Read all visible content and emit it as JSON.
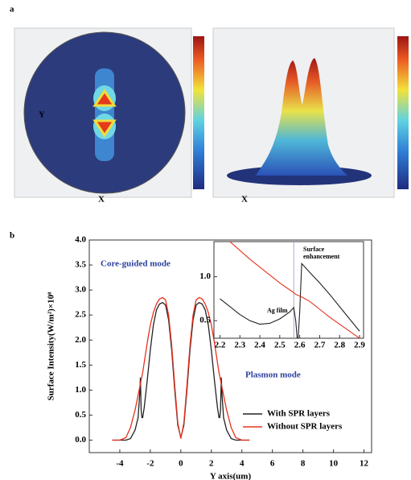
{
  "panel_labels": [
    "a",
    "b"
  ],
  "panel_a": {
    "left_x_label": "X",
    "left_y_label": "Y",
    "right_x_label": "X"
  },
  "chart_data": [
    {
      "type": "line",
      "x_label": "Y axis(um)",
      "y_label": "Surface Intensity(W/m²)×10⁸",
      "x": [
        -4.5,
        -4,
        -3.6,
        -3.3,
        -3,
        -2.8,
        -2.7,
        -2.65,
        -2.6,
        -2.55,
        -2.5,
        -2.4,
        -2.2,
        -2,
        -1.8,
        -1.6,
        -1.4,
        -1.2,
        -1,
        -0.8,
        -0.6,
        -0.4,
        -0.2,
        0,
        0.2,
        0.4,
        0.6,
        0.8,
        1,
        1.2,
        1.4,
        1.6,
        1.8,
        2,
        2.2,
        2.4,
        2.5,
        2.55,
        2.6,
        2.65,
        2.7,
        2.8,
        3,
        3.3,
        3.6,
        4,
        4.5
      ],
      "series": [
        {
          "name": "With SPR layers",
          "color": "#222222",
          "values": [
            0,
            0,
            0,
            0.03,
            0.2,
            0.45,
            0.9,
            1.25,
            0.6,
            0.45,
            0.45,
            0.65,
            1.2,
            1.8,
            2.3,
            2.6,
            2.72,
            2.75,
            2.7,
            2.4,
            1.8,
            1.0,
            0.3,
            0.05,
            0.3,
            1.0,
            1.8,
            2.4,
            2.7,
            2.75,
            2.72,
            2.6,
            2.3,
            1.8,
            1.2,
            0.65,
            0.45,
            0.45,
            0.6,
            1.25,
            0.9,
            0.45,
            0.2,
            0.03,
            0,
            0,
            0
          ]
        },
        {
          "name": "Without SPR layers",
          "color": "#e8321e",
          "values": [
            0,
            0,
            0.05,
            0.25,
            0.6,
            0.9,
            1.05,
            1.12,
            1.2,
            1.28,
            1.35,
            1.55,
            1.95,
            2.3,
            2.55,
            2.72,
            2.82,
            2.85,
            2.8,
            2.5,
            1.9,
            1.1,
            0.35,
            0.03,
            0.35,
            1.1,
            1.9,
            2.5,
            2.8,
            2.85,
            2.82,
            2.72,
            2.55,
            2.3,
            1.95,
            1.55,
            1.35,
            1.28,
            1.2,
            1.12,
            1.05,
            0.9,
            0.6,
            0.25,
            0.05,
            0,
            0
          ]
        }
      ],
      "xlim": [
        -6,
        12.5
      ],
      "xticks": [
        -4,
        -2,
        0,
        2,
        4,
        6,
        8,
        10,
        12
      ],
      "ylim": [
        -0.25,
        4.0
      ],
      "yticks": [
        {
          "value": 0,
          "label": "0.0"
        },
        0.5,
        {
          "value": 1,
          "label": "1.0"
        },
        1.5,
        {
          "value": 2,
          "label": "2.0"
        },
        2.5,
        {
          "value": 3,
          "label": "3.0"
        },
        3.5,
        {
          "value": 4,
          "label": "4.0"
        }
      ],
      "legend": "lower right",
      "annotations": [
        "Core-guided mode",
        "Plasmon mode"
      ]
    },
    {
      "type": "line",
      "x": [
        2.2,
        2.25,
        2.3,
        2.35,
        2.4,
        2.45,
        2.5,
        2.55,
        2.57,
        2.58,
        2.59,
        2.6,
        2.61,
        2.65,
        2.7,
        2.75,
        2.8,
        2.85,
        2.9
      ],
      "series": [
        {
          "color": "#222222",
          "values": [
            0.75,
            0.66,
            0.57,
            0.5,
            0.46,
            0.47,
            0.52,
            0.6,
            0.65,
            0.5,
            0.22,
            0.6,
            1.15,
            1.05,
            0.93,
            0.8,
            0.66,
            0.52,
            0.38
          ]
        },
        {
          "color": "#e8321e",
          "values": [
            1.5,
            1.4,
            1.3,
            1.2,
            1.11,
            1.02,
            0.93,
            0.85,
            0.82,
            0.8,
            0.79,
            0.78,
            0.77,
            0.72,
            0.63,
            0.54,
            0.46,
            0.38,
            0.3
          ]
        }
      ],
      "xlim": [
        2.17,
        2.92
      ],
      "xticks": [
        2.2,
        2.3,
        2.4,
        2.5,
        2.6,
        2.7,
        2.8,
        2.9
      ],
      "ylim": [
        0.3,
        1.4
      ],
      "yticks": [
        0.5,
        {
          "value": 1,
          "label": "1.0"
        }
      ],
      "annotations": [
        "Surface enhancement",
        "Ag film"
      ]
    }
  ]
}
